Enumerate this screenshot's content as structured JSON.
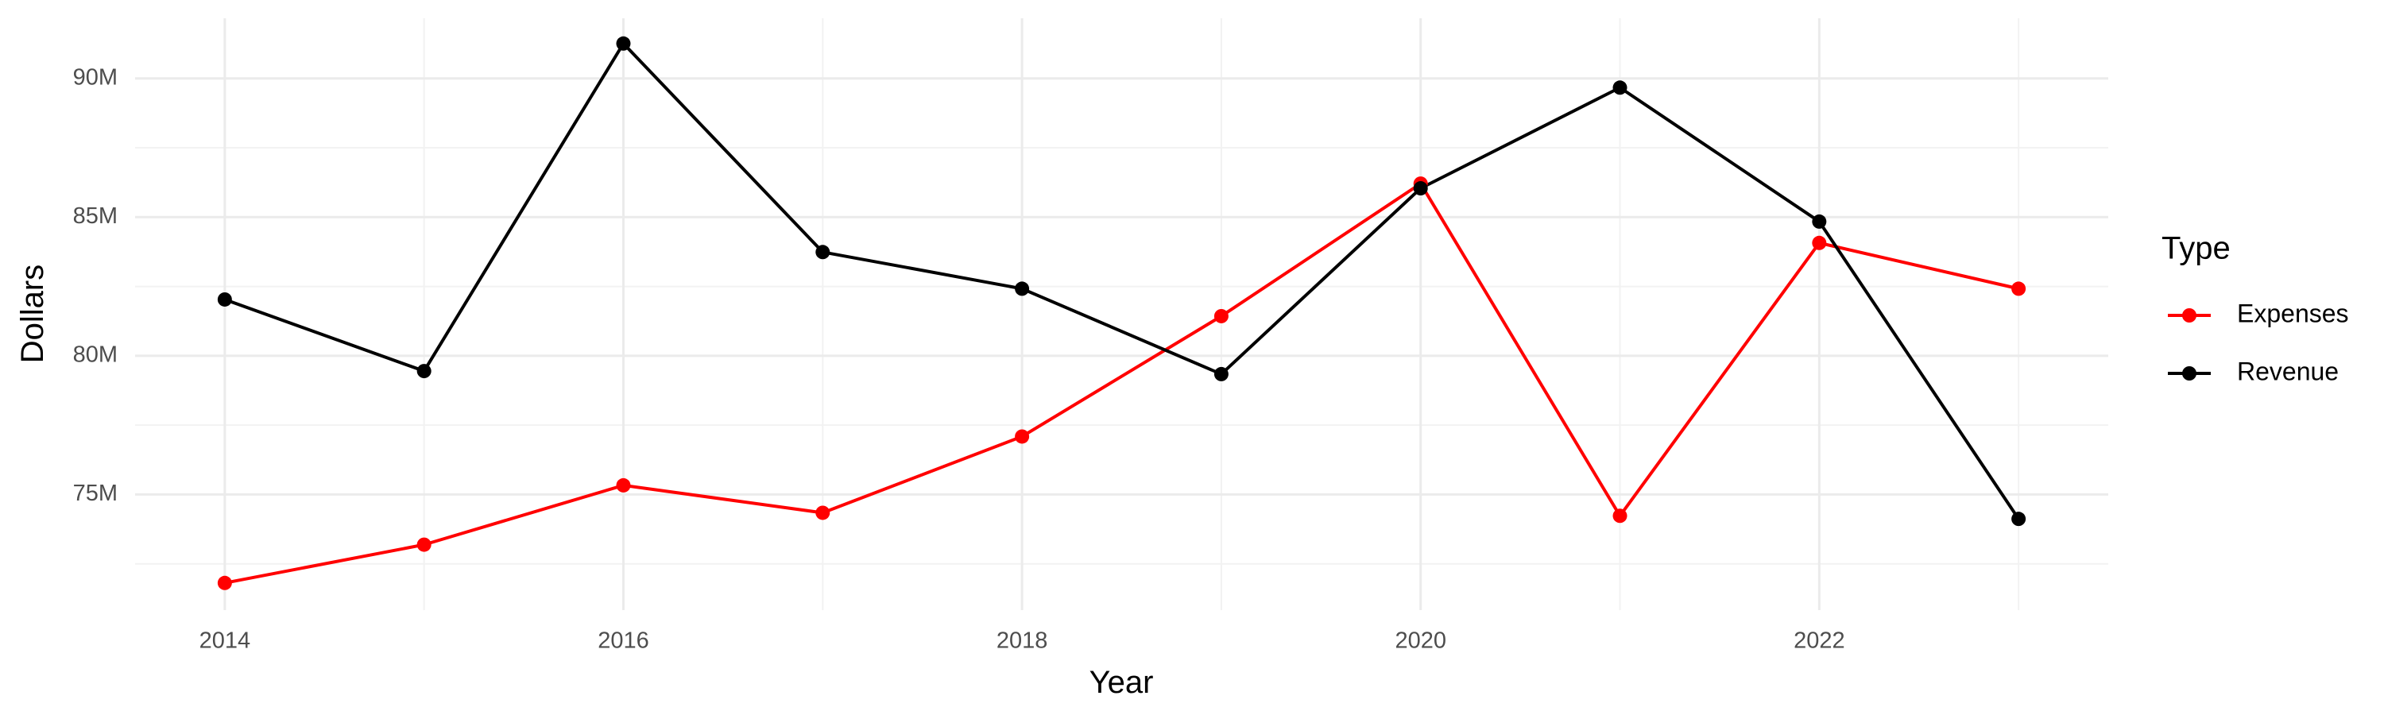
{
  "chart_data": {
    "type": "line",
    "x_label": "Year",
    "y_label": "Dollars",
    "legend_title": "Type",
    "x": [
      2014,
      2015,
      2016,
      2017,
      2018,
      2019,
      2020,
      2021,
      2022,
      2023
    ],
    "series": [
      {
        "name": "Expenses",
        "color": "#ff0000",
        "values": [
          71810000,
          73190000,
          75330000,
          74340000,
          77090000,
          81430000,
          86210000,
          74230000,
          84070000,
          82420000
        ]
      },
      {
        "name": "Revenue",
        "color": "#000000",
        "values": [
          82030000,
          79450000,
          91260000,
          83740000,
          82420000,
          79340000,
          86040000,
          89670000,
          84840000,
          74120000
        ]
      }
    ],
    "xlim": [
      2013.55,
      2023.45
    ],
    "xticks": [
      2014,
      2016,
      2018,
      2020,
      2022
    ],
    "ylim": [
      70830000,
      92170000
    ],
    "yticks": [
      {
        "value": 75000000,
        "label": "75M"
      },
      {
        "value": 80000000,
        "label": "80M"
      },
      {
        "value": 85000000,
        "label": "85M"
      },
      {
        "value": 90000000,
        "label": "90M"
      }
    ],
    "grid": true,
    "legend": "right"
  }
}
